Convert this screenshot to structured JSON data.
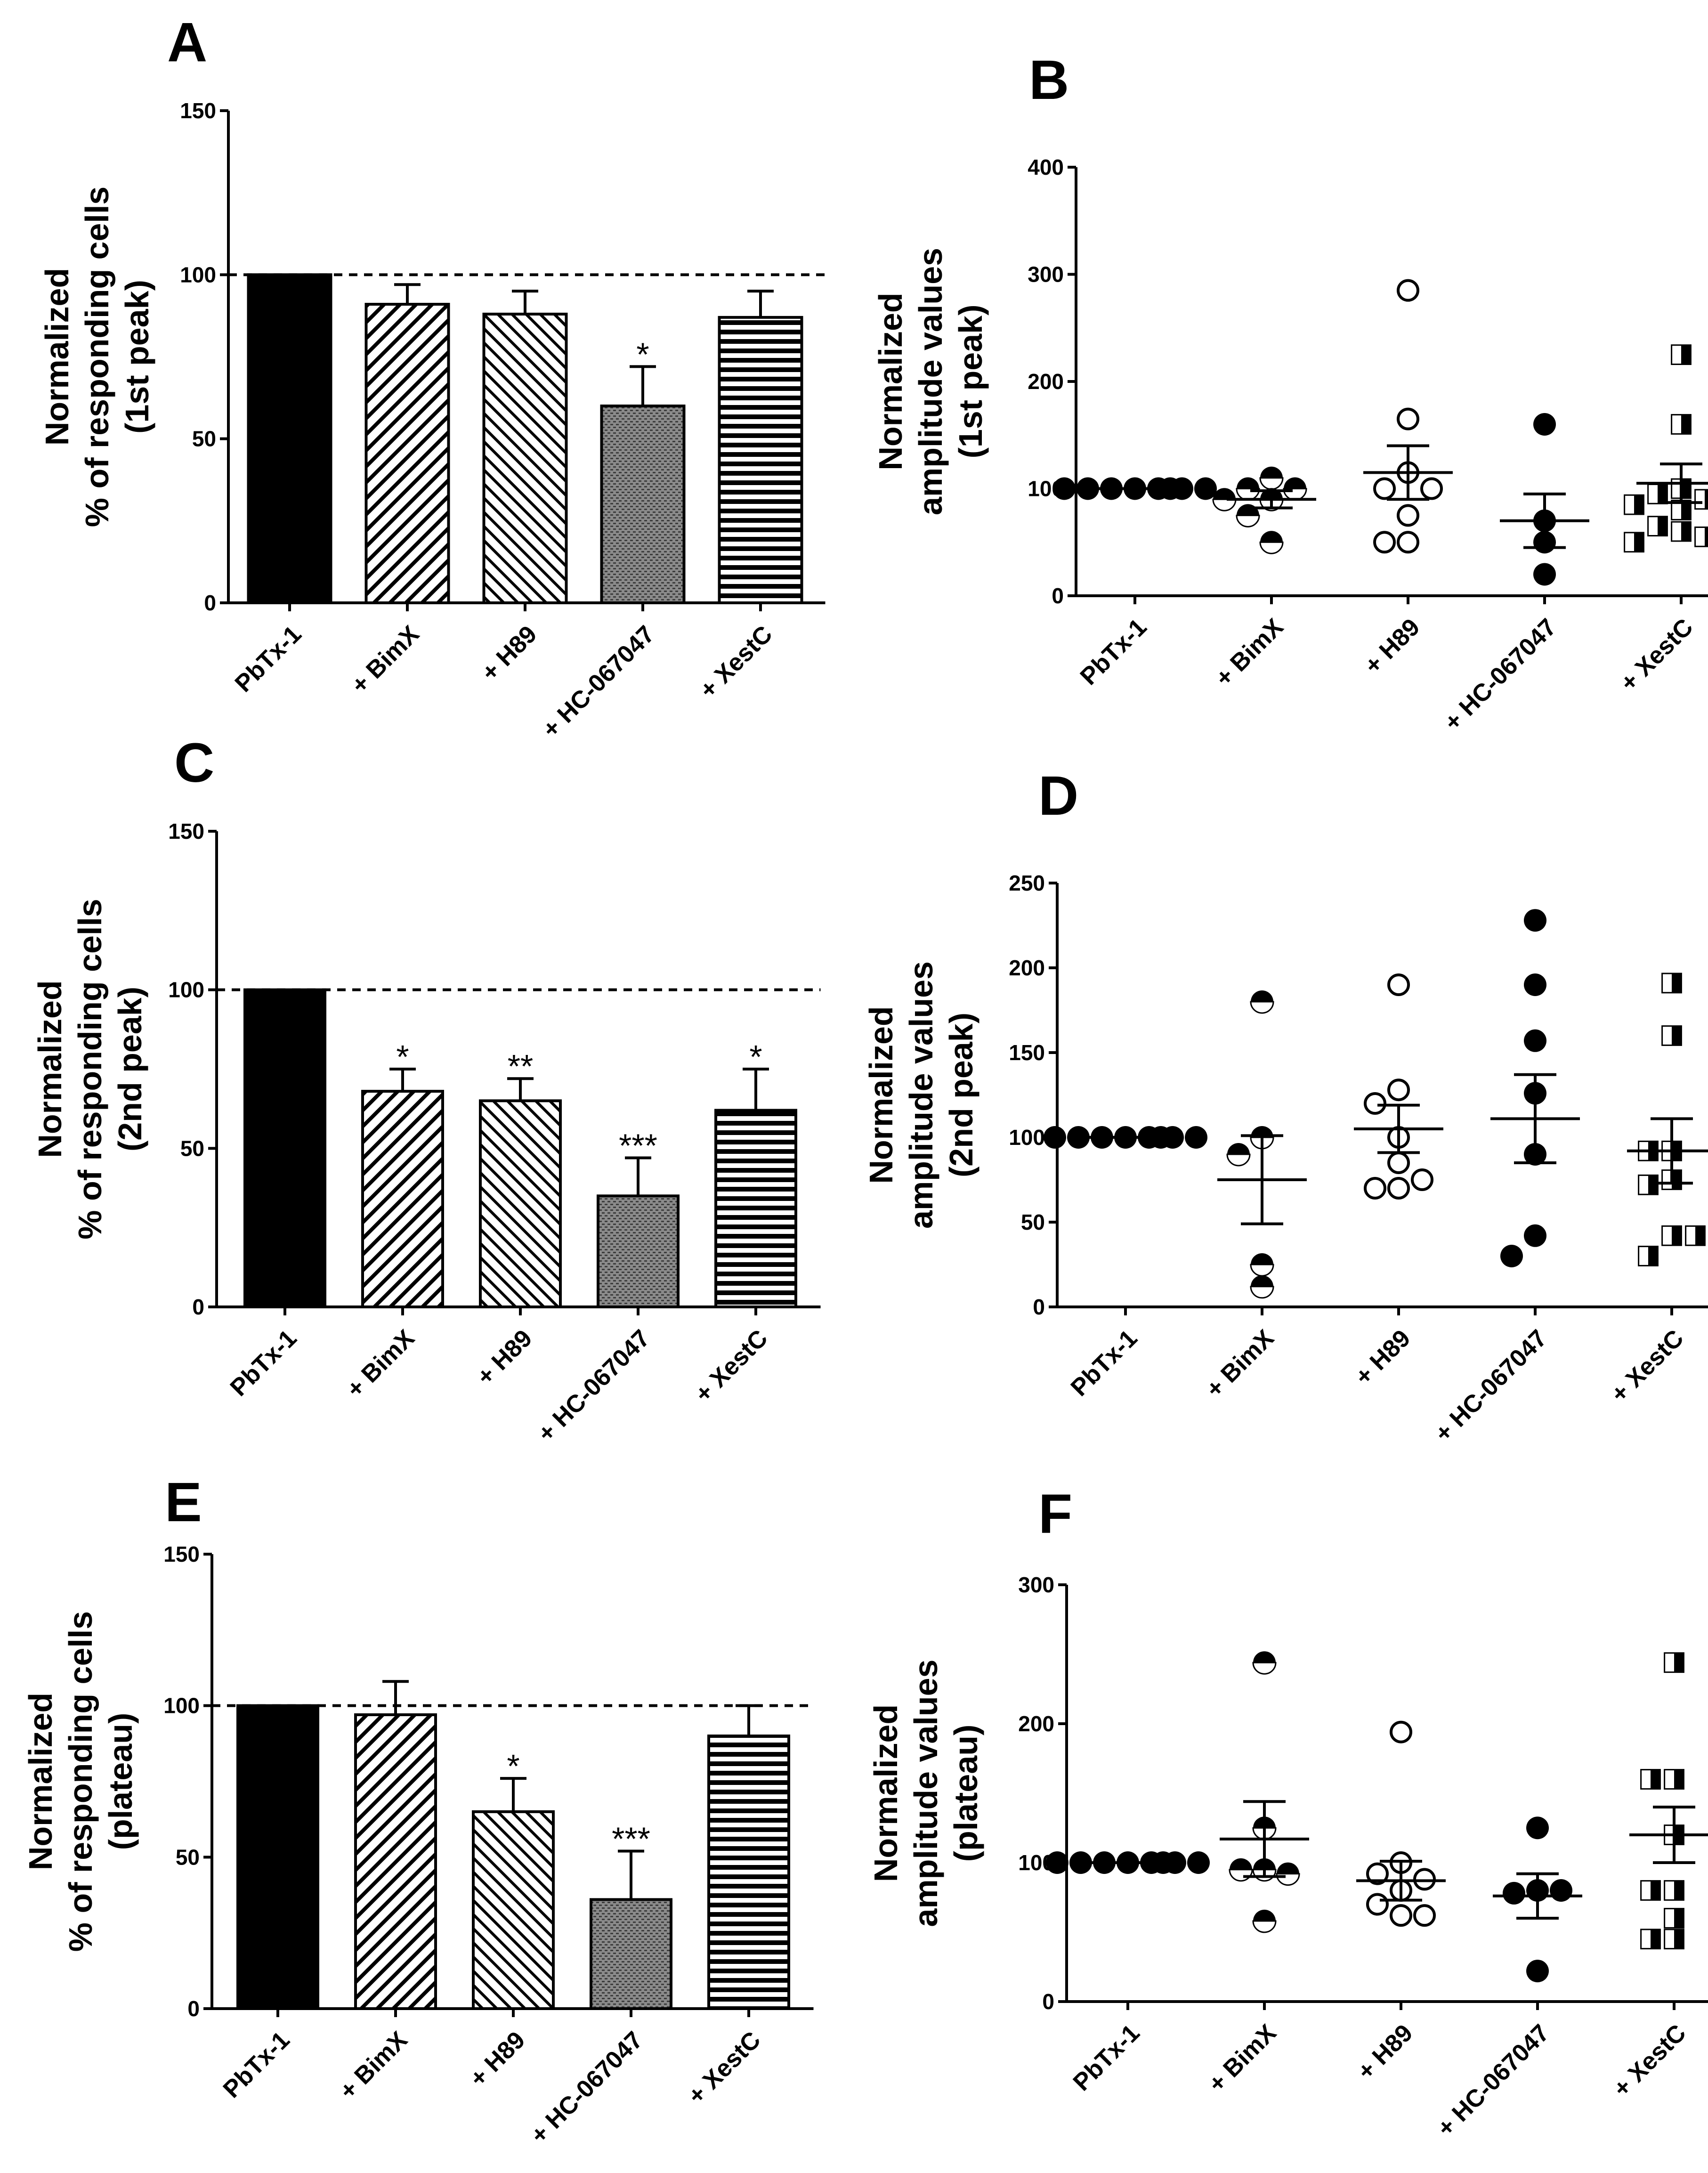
{
  "chart_data": [
    {
      "panel": "A",
      "type": "bar",
      "ylabel": [
        "Normalized",
        "% of  responding cells",
        "(1st peak)"
      ],
      "ylim": [
        0,
        150
      ],
      "yticks": [
        "0",
        "50",
        "100",
        "150"
      ],
      "categories": [
        "PbTx-1",
        "+ BimX",
        "+ H89",
        "+ HC-067047",
        "+ XestC"
      ],
      "values": [
        100,
        91,
        88,
        60,
        87
      ],
      "errors": [
        0,
        6,
        7,
        12,
        8
      ],
      "significance": [
        "",
        "",
        "",
        "*",
        ""
      ],
      "patterns": [
        "solid",
        "diag-up",
        "diag-down",
        "dots",
        "horizontal"
      ],
      "reference_line": 100
    },
    {
      "panel": "B",
      "type": "scatter",
      "ylabel": [
        "Normalized",
        "amplitude values",
        "(1st peak)"
      ],
      "ylim": [
        0,
        400
      ],
      "yticks": [
        "0",
        "100",
        "200",
        "300",
        "400"
      ],
      "categories": [
        "PbTx-1",
        "+ BimX",
        "+ H89",
        "+ HC-067047",
        "+ XestC"
      ],
      "markers": [
        "filled-circle",
        "half-circle",
        "open-circle",
        "filled-circle",
        "half-square"
      ],
      "points": [
        [
          100,
          100,
          100,
          100,
          100,
          100,
          100,
          100
        ],
        [
          110,
          100,
          100,
          90,
          90,
          75,
          50
        ],
        [
          285,
          165,
          115,
          100,
          100,
          75,
          50,
          50
        ],
        [
          160,
          70,
          50,
          20
        ],
        [
          225,
          160,
          100,
          95,
          90,
          85,
          80,
          65,
          60,
          55,
          50,
          95
        ]
      ],
      "means": [
        100,
        90,
        115,
        70,
        105
      ],
      "sems": [
        0,
        8,
        25,
        25,
        18
      ]
    },
    {
      "panel": "C",
      "type": "bar",
      "ylabel": [
        "Normalized",
        "% of responding cells",
        "(2nd peak)"
      ],
      "ylim": [
        0,
        150
      ],
      "yticks": [
        "0",
        "50",
        "100",
        "150"
      ],
      "categories": [
        "PbTx-1",
        "+ BimX",
        "+ H89",
        "+ HC-067047",
        "+ XestC"
      ],
      "values": [
        100,
        68,
        65,
        35,
        62
      ],
      "errors": [
        0,
        7,
        7,
        12,
        13
      ],
      "significance": [
        "",
        "*",
        "**",
        "***",
        "*"
      ],
      "patterns": [
        "solid",
        "diag-up",
        "diag-down",
        "dots",
        "horizontal"
      ],
      "reference_line": 100
    },
    {
      "panel": "D",
      "type": "scatter",
      "ylabel": [
        "Normalized",
        "amplitude values",
        "(2nd peak)"
      ],
      "ylim": [
        0,
        250
      ],
      "yticks": [
        "0",
        "50",
        "100",
        "150",
        "200",
        "250"
      ],
      "categories": [
        "PbTx-1",
        "+ BimX",
        "+ H89",
        "+ HC-067047",
        "+ XestC"
      ],
      "markers": [
        "filled-circle",
        "half-circle",
        "open-circle",
        "filled-circle",
        "half-square"
      ],
      "points": [
        [
          100,
          100,
          100,
          100,
          100,
          100,
          100,
          100
        ],
        [
          180,
          100,
          90,
          25,
          12
        ],
        [
          190,
          128,
          120,
          100,
          85,
          70,
          70,
          75
        ],
        [
          228,
          190,
          157,
          126,
          90,
          42,
          30
        ],
        [
          191,
          160,
          92,
          92,
          75,
          72,
          42,
          30,
          42
        ]
      ],
      "means": [
        100,
        75,
        105,
        111,
        92
      ],
      "sems": [
        0,
        26,
        14,
        26,
        19
      ]
    },
    {
      "panel": "E",
      "type": "bar",
      "ylabel": [
        "Normalized",
        "% of responding cells",
        "(plateau)"
      ],
      "ylim": [
        0,
        150
      ],
      "yticks": [
        "0",
        "50",
        "100",
        "150"
      ],
      "categories": [
        "PbTx-1",
        "+ BimX",
        "+ H89",
        "+ HC-067047",
        "+ XestC"
      ],
      "values": [
        100,
        97,
        65,
        36,
        90
      ],
      "errors": [
        0,
        11,
        11,
        16,
        10
      ],
      "significance": [
        "",
        "",
        "*",
        "***",
        ""
      ],
      "patterns": [
        "solid",
        "diag-up",
        "diag-down",
        "dots",
        "horizontal"
      ],
      "reference_line": 100
    },
    {
      "panel": "F",
      "type": "scatter",
      "ylabel": [
        "Normalized",
        "amplitude values",
        "(plateau)"
      ],
      "ylim": [
        0,
        300
      ],
      "yticks": [
        "0",
        "100",
        "200",
        "300"
      ],
      "categories": [
        "PbTx-1",
        "+ BimX",
        "+ H89",
        "+ HC-067047",
        "+ XestC"
      ],
      "markers": [
        "filled-circle",
        "half-circle",
        "open-circle",
        "filled-circle",
        "half-square"
      ],
      "points": [
        [
          100,
          100,
          100,
          100,
          100,
          100,
          100,
          100
        ],
        [
          244,
          125,
          95,
          95,
          92,
          58
        ],
        [
          194,
          100,
          92,
          88,
          80,
          70,
          62,
          62
        ],
        [
          125,
          80,
          78,
          80,
          22
        ],
        [
          244,
          160,
          160,
          120,
          80,
          80,
          60,
          45,
          45
        ]
      ],
      "means": [
        100,
        117,
        87,
        76,
        120
      ],
      "sems": [
        0,
        27,
        14,
        16,
        20
      ]
    }
  ]
}
